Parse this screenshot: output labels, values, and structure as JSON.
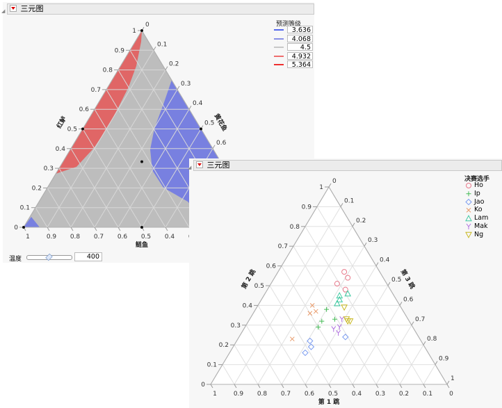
{
  "panel1": {
    "title": "三元图",
    "legend_title": "预测等级",
    "legend": [
      {
        "value": "3.636",
        "color": "#5468ee"
      },
      {
        "value": "4.068",
        "color": "#8890e6"
      },
      {
        "value": "4.5",
        "color": "#c8c8c8"
      },
      {
        "value": "4.932",
        "color": "#ee6e6e"
      },
      {
        "value": "5.364",
        "color": "#ee3030"
      }
    ],
    "slider": {
      "label": "温度",
      "value": "400",
      "position_fraction": 0.5
    }
  },
  "panel2": {
    "title": "三元图",
    "legend_title": "决赛选手"
  },
  "chart_data": [
    {
      "type": "ternary-contour",
      "axes": {
        "bottom": "鲢鱼",
        "left": "红鲈",
        "right": "黄花鱼"
      },
      "ticks": [
        "0",
        "0.1",
        "0.2",
        "0.3",
        "0.4",
        "0.5",
        "0.6",
        "0.7",
        "0.8",
        "0.9",
        "1"
      ],
      "region_colors": {
        "low": "#7880e0",
        "mid": "#bdbdbd",
        "high": "#e06666"
      },
      "grid": true
    },
    {
      "type": "ternary-scatter",
      "axes": {
        "bottom": "第 1 跳",
        "left": "第 2 跳",
        "right": "第 3 跳"
      },
      "ticks": [
        "0",
        "0.1",
        "0.2",
        "0.3",
        "0.4",
        "0.5",
        "0.6",
        "0.7",
        "0.8",
        "0.9",
        "1"
      ],
      "grid": true,
      "legend_placement": "right",
      "series": [
        {
          "name": "Ho",
          "marker": "circle",
          "color": "#e8788a",
          "points": [
            [
              0.15,
              0.57,
              0.28
            ],
            [
              0.15,
              0.54,
              0.31
            ],
            [
              0.21,
              0.51,
              0.28
            ],
            [
              0.19,
              0.48,
              0.33
            ]
          ]
        },
        {
          "name": "Ip",
          "marker": "plus",
          "color": "#44bb55",
          "points": [
            [
              0.32,
              0.38,
              0.3
            ],
            [
              0.37,
              0.32,
              0.31
            ],
            [
              0.31,
              0.33,
              0.36
            ],
            [
              0.4,
              0.29,
              0.31
            ]
          ]
        },
        {
          "name": "Jao",
          "marker": "diamond",
          "color": "#7b9cf0",
          "points": [
            [
              0.47,
              0.22,
              0.31
            ],
            [
              0.48,
              0.19,
              0.33
            ],
            [
              0.52,
              0.16,
              0.32
            ],
            [
              0.31,
              0.24,
              0.45
            ]
          ]
        },
        {
          "name": "Ko",
          "marker": "x",
          "color": "#e89a6a",
          "points": [
            [
              0.37,
              0.4,
              0.23
            ],
            [
              0.37,
              0.37,
              0.26
            ],
            [
              0.4,
              0.36,
              0.24
            ],
            [
              0.54,
              0.23,
              0.23
            ]
          ]
        },
        {
          "name": "Lam",
          "marker": "triangle",
          "color": "#3cc8a0",
          "points": [
            [
              0.19,
              0.46,
              0.35
            ],
            [
              0.23,
              0.45,
              0.32
            ],
            [
              0.24,
              0.43,
              0.33
            ],
            [
              0.26,
              0.41,
              0.33
            ]
          ]
        },
        {
          "name": "Mak",
          "marker": "y",
          "color": "#b070e0",
          "points": [
            [
              0.28,
              0.33,
              0.39
            ],
            [
              0.31,
              0.29,
              0.4
            ],
            [
              0.34,
              0.28,
              0.38
            ],
            [
              0.33,
              0.26,
              0.41
            ]
          ]
        },
        {
          "name": "Ng",
          "marker": "triangle-down",
          "color": "#c8b820",
          "points": [
            [
              0.24,
              0.39,
              0.37
            ],
            [
              0.26,
              0.33,
              0.41
            ],
            [
              0.26,
              0.32,
              0.42
            ],
            [
              0.25,
              0.32,
              0.43
            ]
          ]
        }
      ]
    }
  ]
}
